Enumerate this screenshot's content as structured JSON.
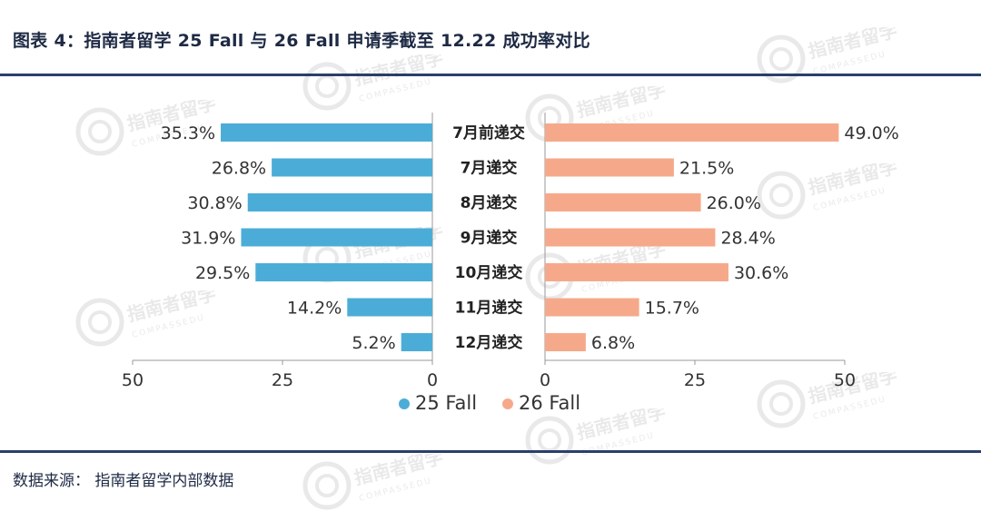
{
  "figure": {
    "title": "图表 4：指南者留学 25 Fall 与 26 Fall 申请季截至 12.22 成功率对比",
    "source": "数据来源：  指南者留学内部数据",
    "watermark_text": "指南者留学",
    "watermark_subtext": "COMPASSEDU"
  },
  "chart_data": {
    "type": "bar",
    "orientation": "horizontal-butterfly",
    "categories": [
      "7月前递交",
      "7月递交",
      "8月递交",
      "9月递交",
      "10月递交",
      "11月递交",
      "12月递交"
    ],
    "series": [
      {
        "name": "25 Fall",
        "values": [
          35.3,
          26.8,
          30.8,
          31.9,
          29.5,
          14.2,
          5.2
        ],
        "labels": [
          "35.3%",
          "26.8%",
          "30.8%",
          "31.9%",
          "29.5%",
          "14.2%",
          "5.2%"
        ],
        "color": "#4badd7"
      },
      {
        "name": "26 Fall",
        "values": [
          49.0,
          21.5,
          26.0,
          28.4,
          30.6,
          15.7,
          6.8
        ],
        "labels": [
          "49.0%",
          "21.5%",
          "26.0%",
          "28.4%",
          "30.6%",
          "15.7%",
          "6.8%"
        ],
        "color": "#f6a98a"
      }
    ],
    "left_axis": {
      "range": [
        50,
        0
      ],
      "ticks": [
        "50",
        "25",
        "0"
      ]
    },
    "right_axis": {
      "range": [
        0,
        50
      ],
      "ticks": [
        "0",
        "25",
        "50"
      ]
    },
    "legend": {
      "placement": "bottom-center",
      "items": [
        "25 Fall",
        "26 Fall"
      ]
    },
    "grid": false
  }
}
